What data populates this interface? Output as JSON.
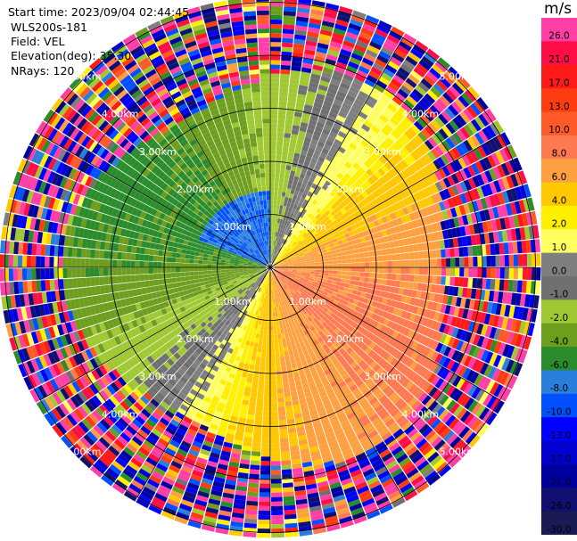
{
  "header": {
    "start_time": "Start time: 2023/09/04 02:44:45",
    "instrument": "WLS200s-181",
    "field": "Field: VEL",
    "elevation": "Elevation(deg): 35.30",
    "nrays": "NRays: 120"
  },
  "colorbar": {
    "unit": "m/s",
    "ticks": [
      "26.0",
      "21.0",
      "17.0",
      "13.0",
      "10.0",
      "8.0",
      "6.0",
      "4.0",
      "2.0",
      "1.0",
      "0.0",
      "-1.0",
      "-2.0",
      "-4.0",
      "-6.0",
      "-8.0",
      "-10.0",
      "-13.0",
      "-17.0",
      "-21.0",
      "-26.0",
      "-30.0"
    ],
    "colors": [
      "#ff3fa6",
      "#ff0d47",
      "#ff1a1a",
      "#ff3b10",
      "#ff5a28",
      "#ff7a50",
      "#ffa040",
      "#ffc800",
      "#fff000",
      "#ffff60",
      "#7f7f7f",
      "#707070",
      "#a0c832",
      "#6e9e1e",
      "#2a8c2a",
      "#2a7fdc",
      "#0050ff",
      "#0000ff",
      "#0000d0",
      "#0000a0",
      "#101070",
      "#1a1a55"
    ]
  },
  "chart_data": {
    "type": "heatmap",
    "projection": "ppi-polar",
    "field": "VEL",
    "n_rays": 120,
    "range_rings_km": [
      1,
      2,
      3,
      4,
      5
    ],
    "range_ring_labels": [
      "1.00km",
      "2.00km",
      "3.00km",
      "4.00km",
      "5.00km"
    ],
    "spokes_deg": [
      0,
      30,
      60,
      90,
      120,
      150,
      180,
      210,
      240,
      270,
      300,
      330
    ],
    "velocity_range": [
      -30,
      30
    ],
    "grid": true
  }
}
